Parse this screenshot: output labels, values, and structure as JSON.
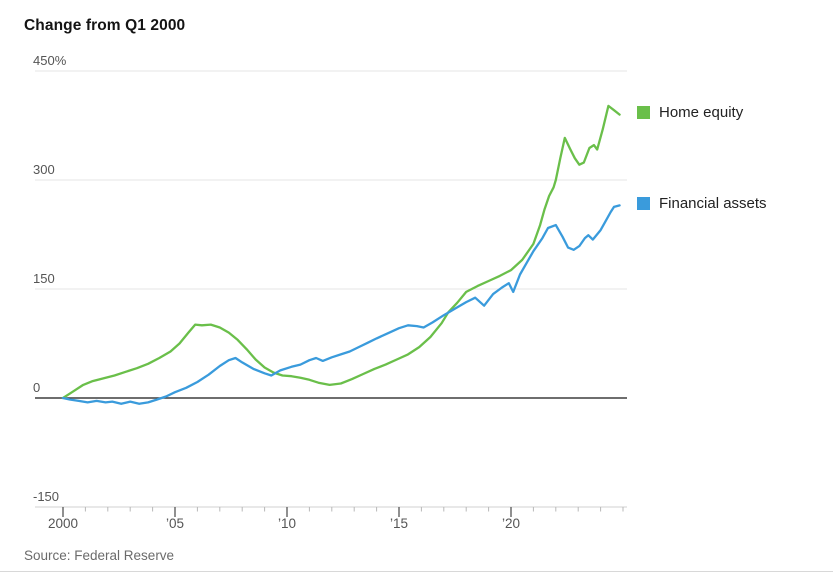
{
  "title": "Change from Q1 2000",
  "source": "Source: Federal Reserve",
  "legend": [
    {
      "label": "Home equity",
      "color": "#6abf4a",
      "swatch_icon": "green-square-icon"
    },
    {
      "label": "Financial assets",
      "color": "#3a9bdc",
      "swatch_icon": "blue-square-icon"
    }
  ],
  "colors": {
    "home_equity": "#6abf4a",
    "financial_assets": "#3a9bdc",
    "gridline": "#e4e4e4",
    "zero_line": "#3f3f3f",
    "axis_line": "#d0d0d0",
    "minor_tick": "#b8b8b8",
    "major_tick": "#555555",
    "axis_text": "#555555",
    "title_text": "#141414",
    "source_text": "#6b6b6b"
  },
  "chart_data": {
    "type": "line",
    "title": "Change from Q1 2000",
    "xlabel": "",
    "ylabel": "Change from Q1 2000 (%)",
    "legend_position": "right-of-plot, aligned with line endpoints",
    "grid": "horizontal gridlines only",
    "x_axis": {
      "range": [
        1998.75,
        2025.2
      ],
      "major_ticks": [
        2000,
        2005,
        2010,
        2015,
        2020
      ],
      "major_labels": [
        "2000",
        "’05",
        "’10",
        "’15",
        "’20"
      ],
      "minor_tick_years": [
        2000,
        2001,
        2002,
        2003,
        2004,
        2005,
        2006,
        2007,
        2008,
        2009,
        2010,
        2011,
        2012,
        2013,
        2014,
        2015,
        2016,
        2017,
        2018,
        2019,
        2020,
        2021,
        2022,
        2023,
        2024,
        2025
      ]
    },
    "y_axis": {
      "range": [
        -150,
        450
      ],
      "gridlines": [
        450,
        300,
        150,
        0,
        -150
      ],
      "labels": [
        "450%",
        "300",
        "150",
        "0",
        "-150"
      ],
      "unit": "percent"
    },
    "series": [
      {
        "name": "Home equity",
        "color": "#6abf4a",
        "points": [
          [
            2000.0,
            0
          ],
          [
            2000.4,
            8
          ],
          [
            2000.9,
            18
          ],
          [
            2001.3,
            23
          ],
          [
            2001.8,
            27
          ],
          [
            2002.3,
            31
          ],
          [
            2002.8,
            36
          ],
          [
            2003.3,
            41
          ],
          [
            2003.8,
            47
          ],
          [
            2004.3,
            55
          ],
          [
            2004.8,
            64
          ],
          [
            2005.2,
            75
          ],
          [
            2005.6,
            90
          ],
          [
            2005.9,
            101
          ],
          [
            2006.2,
            100
          ],
          [
            2006.6,
            101
          ],
          [
            2007.0,
            97
          ],
          [
            2007.4,
            90
          ],
          [
            2007.8,
            80
          ],
          [
            2008.2,
            67
          ],
          [
            2008.6,
            53
          ],
          [
            2009.0,
            42
          ],
          [
            2009.4,
            35
          ],
          [
            2009.8,
            31
          ],
          [
            2010.2,
            30
          ],
          [
            2010.6,
            28
          ],
          [
            2011.0,
            25
          ],
          [
            2011.4,
            21
          ],
          [
            2011.9,
            18
          ],
          [
            2012.4,
            20
          ],
          [
            2012.9,
            26
          ],
          [
            2013.4,
            33
          ],
          [
            2013.9,
            40
          ],
          [
            2014.4,
            46
          ],
          [
            2014.9,
            53
          ],
          [
            2015.4,
            60
          ],
          [
            2015.9,
            70
          ],
          [
            2016.4,
            84
          ],
          [
            2016.9,
            103
          ],
          [
            2017.2,
            118
          ],
          [
            2017.6,
            131
          ],
          [
            2018.0,
            146
          ],
          [
            2018.5,
            154
          ],
          [
            2019.0,
            161
          ],
          [
            2019.5,
            168
          ],
          [
            2020.0,
            176
          ],
          [
            2020.5,
            190
          ],
          [
            2021.0,
            212
          ],
          [
            2021.3,
            238
          ],
          [
            2021.5,
            260
          ],
          [
            2021.7,
            278
          ],
          [
            2021.9,
            290
          ],
          [
            2022.0,
            300
          ],
          [
            2022.2,
            330
          ],
          [
            2022.4,
            358
          ],
          [
            2022.65,
            342
          ],
          [
            2022.85,
            330
          ],
          [
            2023.05,
            321
          ],
          [
            2023.25,
            324
          ],
          [
            2023.5,
            344
          ],
          [
            2023.7,
            348
          ],
          [
            2023.85,
            342
          ],
          [
            2024.1,
            370
          ],
          [
            2024.35,
            402
          ],
          [
            2024.6,
            396
          ],
          [
            2024.85,
            390
          ]
        ]
      },
      {
        "name": "Financial assets",
        "color": "#3a9bdc",
        "points": [
          [
            2000.0,
            0
          ],
          [
            2000.3,
            -2
          ],
          [
            2000.7,
            -4
          ],
          [
            2001.1,
            -6
          ],
          [
            2001.5,
            -4
          ],
          [
            2001.9,
            -6
          ],
          [
            2002.2,
            -5
          ],
          [
            2002.6,
            -8
          ],
          [
            2003.0,
            -5
          ],
          [
            2003.4,
            -8
          ],
          [
            2003.8,
            -6
          ],
          [
            2004.2,
            -2
          ],
          [
            2004.6,
            2
          ],
          [
            2005.0,
            8
          ],
          [
            2005.5,
            14
          ],
          [
            2006.0,
            22
          ],
          [
            2006.5,
            32
          ],
          [
            2007.0,
            44
          ],
          [
            2007.4,
            52
          ],
          [
            2007.7,
            55
          ],
          [
            2008.0,
            49
          ],
          [
            2008.5,
            40
          ],
          [
            2009.0,
            34
          ],
          [
            2009.3,
            31
          ],
          [
            2009.7,
            38
          ],
          [
            2010.2,
            43
          ],
          [
            2010.6,
            46
          ],
          [
            2011.0,
            52
          ],
          [
            2011.3,
            55
          ],
          [
            2011.6,
            51
          ],
          [
            2012.0,
            56
          ],
          [
            2012.4,
            60
          ],
          [
            2012.8,
            64
          ],
          [
            2013.2,
            70
          ],
          [
            2013.6,
            76
          ],
          [
            2014.0,
            82
          ],
          [
            2014.5,
            89
          ],
          [
            2015.0,
            96
          ],
          [
            2015.4,
            100
          ],
          [
            2015.8,
            99
          ],
          [
            2016.1,
            97
          ],
          [
            2016.5,
            104
          ],
          [
            2017.0,
            114
          ],
          [
            2017.5,
            123
          ],
          [
            2018.0,
            132
          ],
          [
            2018.4,
            138
          ],
          [
            2018.8,
            127
          ],
          [
            2019.2,
            143
          ],
          [
            2019.6,
            152
          ],
          [
            2019.9,
            158
          ],
          [
            2020.1,
            146
          ],
          [
            2020.4,
            170
          ],
          [
            2020.7,
            186
          ],
          [
            2021.0,
            202
          ],
          [
            2021.4,
            220
          ],
          [
            2021.65,
            234
          ],
          [
            2022.0,
            238
          ],
          [
            2022.3,
            222
          ],
          [
            2022.55,
            207
          ],
          [
            2022.8,
            204
          ],
          [
            2023.05,
            209
          ],
          [
            2023.3,
            220
          ],
          [
            2023.45,
            224
          ],
          [
            2023.65,
            218
          ],
          [
            2024.0,
            231
          ],
          [
            2024.2,
            242
          ],
          [
            2024.45,
            256
          ],
          [
            2024.6,
            263
          ],
          [
            2024.85,
            265
          ]
        ]
      }
    ]
  }
}
